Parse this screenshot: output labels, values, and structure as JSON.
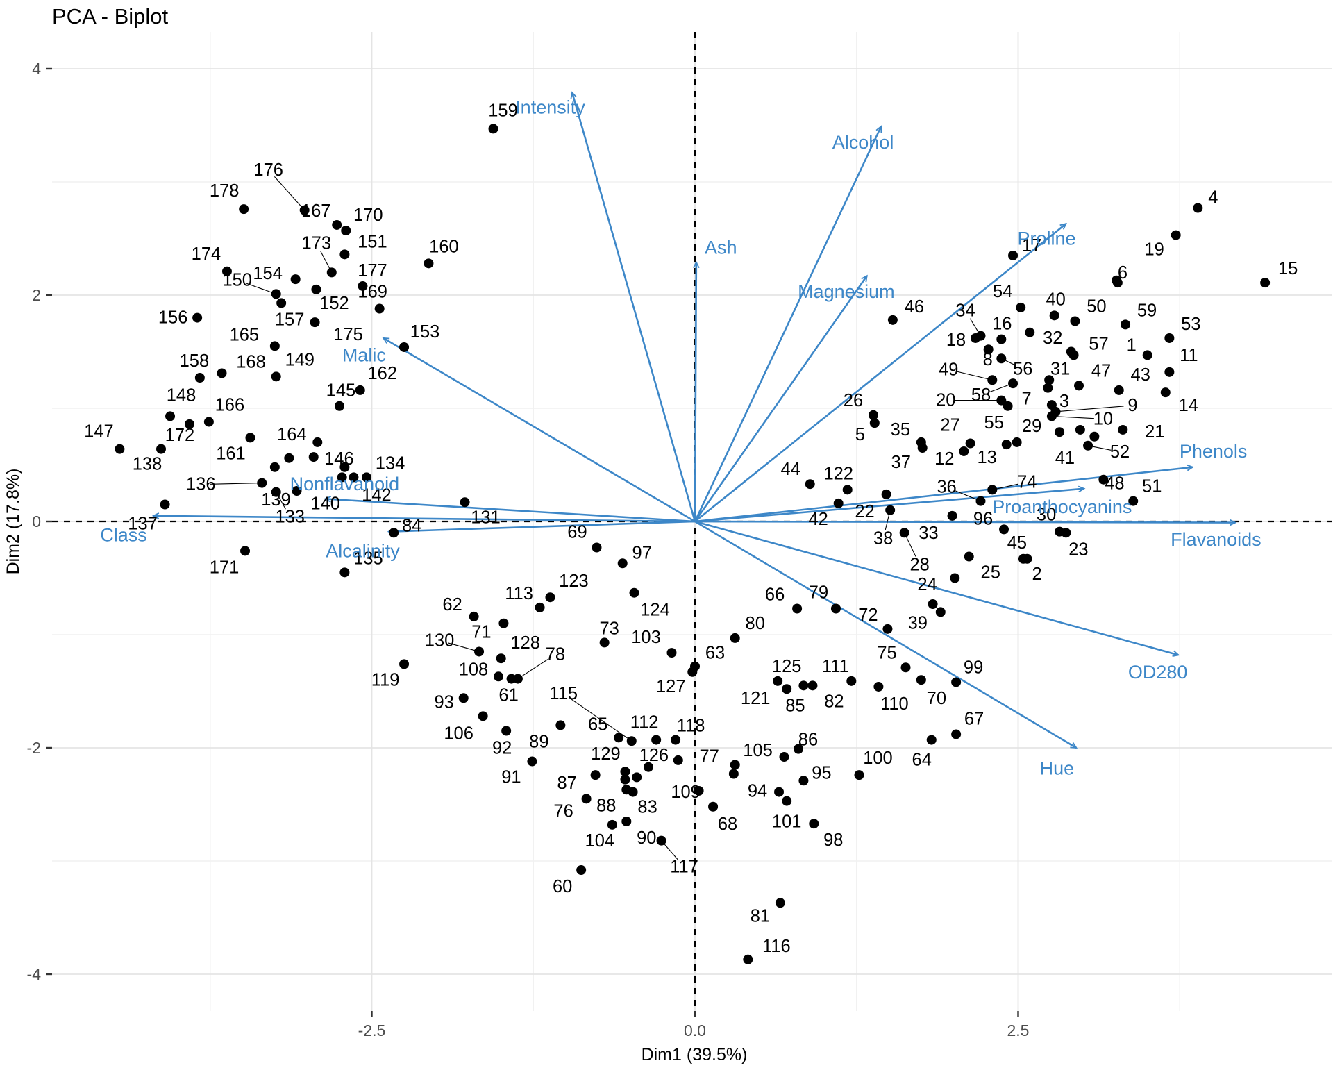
{
  "title": "PCA - Biplot",
  "chart_data": {
    "type": "scatter",
    "title": "PCA - Biplot",
    "xlabel": "Dim1 (39.5%)",
    "ylabel": "Dim2 (17.8%)",
    "xlim": [
      -4.97,
      4.93
    ],
    "ylim": [
      -4.32,
      4.33
    ],
    "x_ticks": [
      {
        "v": -2.5,
        "t": "-2.5"
      },
      {
        "v": 0,
        "t": "0.0"
      },
      {
        "v": 2.5,
        "t": "2.5"
      }
    ],
    "y_ticks": [
      {
        "v": 4,
        "t": "4"
      },
      {
        "v": 2,
        "t": "2"
      },
      {
        "v": 0,
        "t": "0"
      },
      {
        "v": -2,
        "t": "-2"
      },
      {
        "v": -4,
        "t": "-4"
      }
    ],
    "x_minor": [
      -3.75,
      -1.25,
      1.25,
      3.75
    ],
    "y_minor": [
      3,
      1,
      -1,
      -3
    ],
    "grid": true,
    "legend_position": "none",
    "accent_color": "#3d87c8",
    "point_color": "#000000",
    "grid_major_color": "#e4e4e4",
    "grid_minor_color": "#f1f1f1",
    "axis_text_color": "#4d4d4d",
    "arrows": [
      {
        "name": "Class",
        "x": -4.19,
        "y": 0.05,
        "label_x": -4.42,
        "label_y": -0.12
      },
      {
        "name": "Alcalinity",
        "x": -2.37,
        "y": -0.09,
        "label_x": -2.57,
        "label_y": -0.26
      },
      {
        "name": "Nonflavanoid",
        "x": -2.86,
        "y": 0.2,
        "label_x": -2.71,
        "label_y": 0.33
      },
      {
        "name": "Malic",
        "x": -2.41,
        "y": 1.62,
        "label_x": -2.56,
        "label_y": 1.47
      },
      {
        "name": "Intensity",
        "x": -0.95,
        "y": 3.79,
        "label_x": -1.12,
        "label_y": 3.66
      },
      {
        "name": "Ash",
        "x": 0.01,
        "y": 2.29,
        "label_x": 0.2,
        "label_y": 2.42
      },
      {
        "name": "Alcohol",
        "x": 1.44,
        "y": 3.49,
        "label_x": 1.3,
        "label_y": 3.35
      },
      {
        "name": "Magnesium",
        "x": 1.33,
        "y": 2.17,
        "label_x": 1.17,
        "label_y": 2.03
      },
      {
        "name": "Proline",
        "x": 2.87,
        "y": 2.63,
        "label_x": 2.72,
        "label_y": 2.5
      },
      {
        "name": "Proanthocyanins",
        "x": 3.01,
        "y": 0.29,
        "label_x": 2.84,
        "label_y": 0.13
      },
      {
        "name": "Phenols",
        "x": 3.85,
        "y": 0.48,
        "label_x": 4.01,
        "label_y": 0.62
      },
      {
        "name": "Flavanoids",
        "x": 4.18,
        "y": -0.01,
        "label_x": 4.03,
        "label_y": -0.16
      },
      {
        "name": "OD280",
        "x": 3.74,
        "y": -1.18,
        "label_x": 3.58,
        "label_y": -1.33
      },
      {
        "name": "Hue",
        "x": 2.95,
        "y": -2.0,
        "label_x": 2.8,
        "label_y": -2.18
      }
    ],
    "points": [
      [
        "159",
        -1.56,
        3.47,
        14,
        -26,
        0
      ],
      [
        "160",
        -2.06,
        2.28,
        22,
        -24,
        0
      ],
      [
        "178",
        -3.49,
        2.76,
        -28,
        -26,
        0
      ],
      [
        "176",
        -3.02,
        2.75,
        -52,
        -58,
        1
      ],
      [
        "167",
        -2.77,
        2.62,
        -30,
        -20,
        0
      ],
      [
        "170",
        -2.7,
        2.57,
        32,
        -22,
        0
      ],
      [
        "151",
        -2.71,
        2.36,
        40,
        -18,
        0
      ],
      [
        "173",
        -2.81,
        2.2,
        -22,
        -42,
        1
      ],
      [
        "177",
        -2.57,
        2.08,
        14,
        -22,
        0
      ],
      [
        "174",
        -3.62,
        2.21,
        -30,
        -25,
        0
      ],
      [
        "154",
        -3.09,
        2.14,
        -40,
        -8,
        0
      ],
      [
        "150",
        -3.24,
        2.01,
        -56,
        -20,
        1
      ],
      [
        "152",
        -2.93,
        2.05,
        26,
        20,
        0
      ],
      [
        "169",
        -2.44,
        1.88,
        -10,
        -24,
        0
      ],
      [
        "157",
        -3.2,
        1.93,
        12,
        24,
        0
      ],
      [
        "175",
        -2.94,
        1.76,
        48,
        18,
        0
      ],
      [
        "165",
        -3.25,
        1.55,
        -44,
        -16,
        0
      ],
      [
        "149",
        -3.24,
        1.28,
        34,
        -24,
        0
      ],
      [
        "168",
        -3.66,
        1.31,
        42,
        -16,
        0
      ],
      [
        "158",
        -3.83,
        1.27,
        -8,
        -24,
        0
      ],
      [
        "156",
        -3.85,
        1.8,
        -35,
        0,
        0
      ],
      [
        "153",
        -2.25,
        1.54,
        30,
        -22,
        0
      ],
      [
        "162",
        -2.59,
        1.16,
        32,
        -24,
        0
      ],
      [
        "145",
        -2.75,
        1.02,
        2,
        -22,
        0
      ],
      [
        "148",
        -4.06,
        0.93,
        16,
        -30,
        0
      ],
      [
        "166",
        -3.76,
        0.88,
        30,
        -24,
        0
      ],
      [
        "172",
        -3.91,
        0.86,
        -14,
        16,
        0
      ],
      [
        "147",
        -4.45,
        0.64,
        -30,
        -25,
        0
      ],
      [
        "138",
        -4.13,
        0.64,
        -20,
        22,
        0
      ],
      [
        "161",
        -3.44,
        0.74,
        -28,
        23,
        0
      ],
      [
        "164",
        -2.92,
        0.7,
        -37,
        -11,
        0
      ],
      [
        "146",
        -2.71,
        0.48,
        -8,
        -12,
        0
      ],
      [
        "136",
        -3.35,
        0.34,
        -88,
        2,
        1
      ],
      [
        "134",
        -2.54,
        0.39,
        34,
        -20,
        0
      ],
      [
        "142",
        -2.64,
        0.39,
        33,
        26,
        0
      ],
      [
        "140",
        -2.73,
        0.39,
        -24,
        38,
        0
      ],
      [
        "139",
        -3.08,
        0.27,
        -30,
        13,
        0
      ],
      [
        "133",
        -3.24,
        0.26,
        20,
        36,
        1
      ],
      [
        "137",
        -4.1,
        0.15,
        -32,
        28,
        0
      ],
      [
        "171",
        -3.48,
        -0.26,
        -30,
        24,
        0
      ],
      [
        "135",
        -2.71,
        -0.45,
        34,
        -20,
        0
      ],
      [
        "131",
        -1.78,
        0.17,
        30,
        22,
        0
      ],
      [
        "84",
        -2.33,
        -0.1,
        26,
        -10,
        0
      ],
      [
        "69",
        -0.76,
        -0.23,
        -28,
        -22,
        0
      ],
      [
        "97",
        -0.56,
        -0.37,
        28,
        -15,
        0
      ],
      [
        "123",
        -1.12,
        -0.67,
        34,
        -23,
        0
      ],
      [
        "113",
        -1.2,
        -0.76,
        -30,
        -20,
        0
      ],
      [
        "62",
        -1.71,
        -0.84,
        -31,
        -17,
        0
      ],
      [
        "124",
        -0.47,
        -0.63,
        30,
        25,
        0
      ],
      [
        "71",
        -1.48,
        -0.9,
        -32,
        13,
        0
      ],
      [
        "73",
        -0.7,
        -1.07,
        7,
        -20,
        0
      ],
      [
        "103",
        -0.18,
        -1.16,
        -37,
        -22,
        0
      ],
      [
        "130",
        -1.67,
        -1.15,
        -57,
        -16,
        1
      ],
      [
        "128",
        -1.5,
        -1.21,
        35,
        -22,
        0
      ],
      [
        "108",
        -1.52,
        -1.37,
        -36,
        -10,
        0
      ],
      [
        "78",
        -1.37,
        -1.39,
        54,
        -35,
        1
      ],
      [
        "61",
        -1.42,
        -1.39,
        -4,
        24,
        0
      ],
      [
        "119",
        -2.25,
        -1.26,
        -27,
        23,
        0
      ],
      [
        "93",
        -1.79,
        -1.56,
        -28,
        6,
        0
      ],
      [
        "106",
        -1.64,
        -1.72,
        -35,
        25,
        0
      ],
      [
        "92",
        -1.46,
        -1.85,
        -6,
        25,
        0
      ],
      [
        "89",
        -1.04,
        -1.8,
        -31,
        24,
        0
      ],
      [
        "91",
        -1.26,
        -2.12,
        -30,
        23,
        0
      ],
      [
        "65",
        -0.59,
        -1.91,
        -30,
        -19,
        0
      ],
      [
        "115",
        -0.49,
        -1.94,
        -98,
        -68,
        1
      ],
      [
        "112",
        -0.3,
        -1.93,
        -17,
        -25,
        0
      ],
      [
        "118",
        -0.15,
        -1.93,
        22,
        -20,
        0
      ],
      [
        "129",
        -0.54,
        -2.21,
        -28,
        -25,
        0
      ],
      [
        "87",
        -0.77,
        -2.24,
        -41,
        12,
        0
      ],
      [
        "126",
        -0.13,
        -2.11,
        -35,
        -7,
        0
      ],
      [
        "88",
        -0.53,
        -2.37,
        -29,
        23,
        0
      ],
      [
        "83",
        -0.48,
        -2.39,
        21,
        22,
        0
      ],
      [
        "76",
        -0.84,
        -2.45,
        -33,
        18,
        0
      ],
      [
        "104",
        -0.64,
        -2.68,
        -18,
        23,
        0
      ],
      [
        "90",
        -0.53,
        -2.65,
        29,
        24,
        0
      ],
      [
        "117",
        -0.26,
        -2.82,
        33,
        38,
        1
      ],
      [
        "60",
        -0.88,
        -3.08,
        -27,
        24,
        0
      ],
      [
        "63",
        0.0,
        -1.28,
        29,
        -19,
        0
      ],
      [
        "127",
        -0.02,
        -1.33,
        -31,
        21,
        0
      ],
      [
        "66",
        0.79,
        -0.77,
        -32,
        -20,
        0
      ],
      [
        "79",
        1.09,
        -0.77,
        -25,
        -23,
        0
      ],
      [
        "80",
        0.31,
        -1.03,
        29,
        -21,
        0
      ],
      [
        "72",
        1.49,
        -0.95,
        -28,
        -20,
        0
      ],
      [
        "125",
        0.64,
        -1.41,
        13,
        -21,
        0
      ],
      [
        "121",
        0.71,
        -1.48,
        -45,
        14,
        0
      ],
      [
        "85",
        0.84,
        -1.45,
        -12,
        29,
        0
      ],
      [
        "82",
        0.91,
        -1.45,
        31,
        23,
        0
      ],
      [
        "111",
        1.21,
        -1.41,
        -23,
        -21,
        0
      ],
      [
        "75",
        1.63,
        -1.29,
        -27,
        -21,
        0
      ],
      [
        "110",
        1.42,
        -1.46,
        23,
        25,
        0
      ],
      [
        "70",
        1.75,
        -1.4,
        22,
        27,
        0
      ],
      [
        "99",
        2.02,
        -1.42,
        25,
        -21,
        0
      ],
      [
        "67",
        2.02,
        -1.88,
        26,
        -22,
        0
      ],
      [
        "64",
        1.83,
        -1.93,
        -14,
        29,
        0
      ],
      [
        "100",
        1.27,
        -2.24,
        27,
        -24,
        0
      ],
      [
        "86",
        0.8,
        -2.01,
        14,
        -13,
        0
      ],
      [
        "105",
        0.69,
        -2.08,
        -38,
        -9,
        0
      ],
      [
        "95",
        0.84,
        -2.29,
        26,
        -11,
        0
      ],
      [
        "94",
        0.65,
        -2.39,
        -31,
        -1,
        0
      ],
      [
        "101",
        0.71,
        -2.47,
        0,
        30,
        0
      ],
      [
        "98",
        0.92,
        -2.67,
        28,
        24,
        0
      ],
      [
        "77",
        0.31,
        -2.15,
        -37,
        -12,
        0
      ],
      [
        "109",
        0.03,
        -2.38,
        -19,
        2,
        0
      ],
      [
        "68",
        0.14,
        -2.52,
        21,
        25,
        0
      ],
      [
        "81",
        0.66,
        -3.37,
        -29,
        19,
        0
      ],
      [
        "116",
        0.41,
        -3.87,
        41,
        -19,
        0
      ],
      [
        "24",
        1.84,
        -0.73,
        -8,
        -28,
        0
      ],
      [
        "39",
        1.9,
        -0.8,
        -33,
        16,
        0
      ],
      [
        "4",
        3.89,
        2.77,
        22,
        -15,
        0
      ],
      [
        "19",
        3.72,
        2.53,
        -31,
        21,
        0
      ],
      [
        "15",
        4.41,
        2.11,
        33,
        -20,
        0
      ],
      [
        "6",
        3.26,
        2.13,
        9,
        -11,
        0
      ],
      [
        "17",
        2.46,
        2.35,
        27,
        -14,
        0
      ],
      [
        "46",
        1.53,
        1.78,
        31,
        -19,
        0
      ],
      [
        "54",
        2.52,
        1.89,
        -26,
        -23,
        0
      ],
      [
        "34",
        2.21,
        1.64,
        -22,
        -36,
        1
      ],
      [
        "16",
        2.37,
        1.61,
        1,
        -22,
        0
      ],
      [
        "18",
        2.17,
        1.62,
        -28,
        3,
        0
      ],
      [
        "32",
        2.59,
        1.67,
        33,
        8,
        0
      ],
      [
        "40",
        2.78,
        1.82,
        2,
        -23,
        0
      ],
      [
        "50",
        2.94,
        1.77,
        31,
        -21,
        0
      ],
      [
        "59",
        3.33,
        1.74,
        31,
        -20,
        0
      ],
      [
        "53",
        3.67,
        1.62,
        31,
        -20,
        0
      ],
      [
        "57",
        2.93,
        1.47,
        36,
        -16,
        0
      ],
      [
        "1",
        3.5,
        1.47,
        -23,
        -14,
        0
      ],
      [
        "11",
        3.67,
        1.32,
        28,
        -24,
        0
      ],
      [
        "43",
        3.28,
        1.16,
        31,
        -22,
        0
      ],
      [
        "14",
        3.64,
        1.14,
        33,
        19,
        0
      ],
      [
        "47",
        2.97,
        1.2,
        32,
        -21,
        0
      ],
      [
        "31",
        2.74,
        1.25,
        16,
        -16,
        0
      ],
      [
        "8",
        2.27,
        1.52,
        -1,
        15,
        0
      ],
      [
        "56",
        2.37,
        1.44,
        31,
        15,
        1
      ],
      [
        "49",
        2.3,
        1.25,
        -63,
        -15,
        1
      ],
      [
        "58",
        2.46,
        1.22,
        -46,
        17,
        1
      ],
      [
        "20",
        2.37,
        1.07,
        -80,
        0,
        1
      ],
      [
        "7",
        2.42,
        1.02,
        27,
        -10,
        0
      ],
      [
        "3",
        2.76,
        1.03,
        18,
        -5,
        0
      ],
      [
        "9",
        2.79,
        0.97,
        111,
        -9,
        1
      ],
      [
        "10",
        2.76,
        0.93,
        74,
        4,
        1
      ],
      [
        "26",
        1.38,
        0.94,
        -29,
        -21,
        0
      ],
      [
        "5",
        1.39,
        0.87,
        -21,
        17,
        0
      ],
      [
        "35",
        1.75,
        0.7,
        -30,
        -18,
        0
      ],
      [
        "37",
        1.76,
        0.65,
        -31,
        21,
        0
      ],
      [
        "27",
        2.13,
        0.69,
        -29,
        -26,
        0
      ],
      [
        "12",
        2.08,
        0.62,
        -28,
        11,
        0
      ],
      [
        "55",
        2.41,
        0.68,
        -18,
        -31,
        0
      ],
      [
        "13",
        2.49,
        0.7,
        -43,
        22,
        0
      ],
      [
        "29",
        2.82,
        0.79,
        -40,
        -8,
        0
      ],
      [
        "41",
        2.98,
        0.81,
        -22,
        41,
        0
      ],
      [
        "21",
        3.31,
        0.81,
        46,
        3,
        0
      ],
      [
        "52",
        3.04,
        0.67,
        46,
        9,
        1
      ],
      [
        "48",
        3.16,
        0.37,
        16,
        6,
        0
      ],
      [
        "51",
        3.39,
        0.18,
        27,
        -21,
        0
      ],
      [
        "44",
        0.89,
        0.33,
        -28,
        -21,
        0
      ],
      [
        "122",
        1.18,
        0.28,
        -13,
        -23,
        0
      ],
      [
        "42",
        1.11,
        0.16,
        -29,
        23,
        0
      ],
      [
        "22",
        1.48,
        0.24,
        -31,
        25,
        0
      ],
      [
        "38",
        1.51,
        0.1,
        -10,
        41,
        1
      ],
      [
        "36",
        2.21,
        0.18,
        -49,
        -20,
        1
      ],
      [
        "74",
        2.3,
        0.28,
        50,
        -11,
        1
      ],
      [
        "96",
        2.39,
        -0.07,
        -30,
        -15,
        0
      ],
      [
        "33",
        1.99,
        0.05,
        -34,
        25,
        0
      ],
      [
        "28",
        1.62,
        -0.1,
        22,
        46,
        1
      ],
      [
        "30",
        2.82,
        -0.09,
        -19,
        -24,
        0
      ],
      [
        "23",
        2.87,
        -0.1,
        18,
        24,
        0
      ],
      [
        "45",
        2.54,
        -0.33,
        -9,
        -23,
        0
      ],
      [
        "2",
        2.57,
        -0.33,
        14,
        22,
        0
      ],
      [
        "25",
        2.12,
        -0.31,
        31,
        23,
        0
      ]
    ],
    "unlabeled_points": [
      [
        -3.14,
        0.56
      ],
      [
        -2.95,
        0.57
      ],
      [
        -3.25,
        0.48
      ],
      [
        3.27,
        2.11
      ],
      [
        2.91,
        1.5
      ],
      [
        2.73,
        1.18
      ],
      [
        3.09,
        0.75
      ],
      [
        0.3,
        -2.23
      ],
      [
        2.01,
        -0.5
      ],
      [
        -0.54,
        -2.28
      ],
      [
        -0.45,
        -2.26
      ],
      [
        -0.36,
        -2.17
      ]
    ]
  }
}
